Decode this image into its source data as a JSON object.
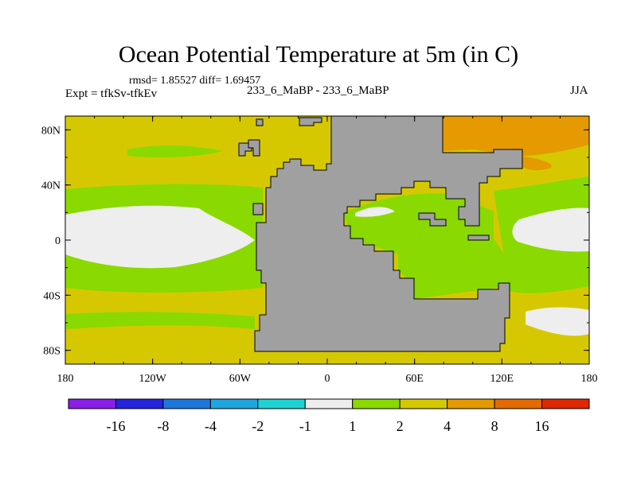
{
  "chart_data": {
    "type": "heatmap",
    "title": "Ocean Potential Temperature at 5m (in C)",
    "stats_text": "rmsd= 1.85527 diff= 1.69457",
    "experiment_label": "Expt = tfkSv-tfkEv",
    "runs_label": "233_6_MaBP - 233_6_MaBP",
    "season": "JJA",
    "x_ticks": [
      "180",
      "120W",
      "60W",
      "0",
      "60E",
      "120E",
      "180"
    ],
    "y_ticks": [
      "80N",
      "40N",
      "0",
      "40S",
      "80S"
    ],
    "xlim": [
      -180,
      180
    ],
    "ylim": [
      -90,
      90
    ],
    "colorbar": {
      "labels": [
        "-16",
        "-8",
        "-4",
        "-2",
        "-1",
        "1",
        "2",
        "4",
        "8",
        "16"
      ],
      "colors": [
        "#8a1ee8",
        "#2424dc",
        "#1e78dc",
        "#1ea6e0",
        "#1ed2d2",
        "#eeeeee",
        "#8ad900",
        "#d6c800",
        "#e49a00",
        "#e46a00",
        "#e02800"
      ]
    },
    "land_color": "#a0a0a0"
  }
}
